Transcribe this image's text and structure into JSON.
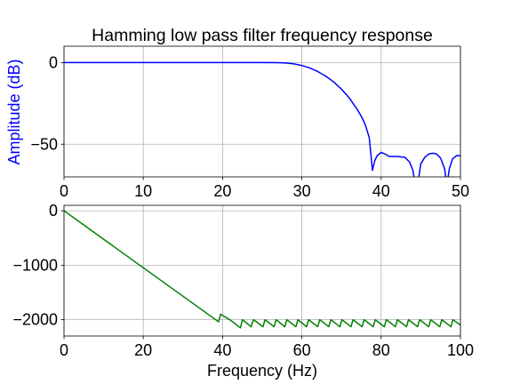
{
  "chart_data": [
    {
      "type": "line",
      "title": "Hamming low pass filter frequency response",
      "xlabel": "",
      "ylabel": "Amplitude (dB)",
      "ylabel_color": "#0000ff",
      "xlim": [
        0,
        50
      ],
      "ylim": [
        -70,
        10
      ],
      "xticks": [
        0,
        10,
        20,
        30,
        40,
        50
      ],
      "yticks": [
        0,
        -50
      ],
      "grid": true,
      "series": [
        {
          "color": "#0000ff",
          "x": [
            0,
            5,
            10,
            15,
            20,
            25,
            27,
            28,
            29,
            30,
            31,
            32,
            33,
            34,
            35,
            36,
            37,
            37.5,
            38,
            38.5,
            38.9,
            39.2,
            39.5,
            40,
            40.5,
            41,
            42,
            43,
            43.6,
            44,
            44.3,
            44.6,
            45,
            45.5,
            46,
            46.5,
            47,
            47.5,
            48,
            48.3,
            48.6,
            49,
            49.5,
            50
          ],
          "y": [
            0,
            0,
            0,
            0,
            0,
            0,
            -0.1,
            -0.3,
            -0.8,
            -1.8,
            -3.3,
            -5.5,
            -8.3,
            -11.8,
            -16.3,
            -21.8,
            -28.8,
            -33,
            -38,
            -46,
            -66,
            -60,
            -57,
            -55,
            -56,
            -57.5,
            -57.5,
            -58,
            -61,
            -66,
            -75,
            -75,
            -62,
            -58,
            -56,
            -55.5,
            -56,
            -58.5,
            -65,
            -75,
            -65,
            -59,
            -57,
            -57
          ]
        }
      ]
    },
    {
      "type": "line",
      "title": "",
      "xlabel": "Frequency (Hz)",
      "ylabel": "",
      "xlim": [
        0,
        100
      ],
      "ylim": [
        -2300,
        100
      ],
      "xticks": [
        0,
        20,
        40,
        60,
        80,
        100
      ],
      "yticks": [
        0,
        -1000,
        -2000
      ],
      "grid": true,
      "series": [
        {
          "color": "#008000",
          "x": [
            0,
            39,
            39.5,
            42,
            44.5,
            45,
            47.2,
            47.8,
            50.2,
            50.7,
            53,
            53.5,
            55.7,
            56.2,
            58.5,
            59,
            61.2,
            61.7,
            64,
            64.5,
            66.8,
            67.3,
            69.6,
            70.1,
            72.4,
            72.9,
            75.2,
            75.7,
            78,
            78.5,
            80.8,
            81.3,
            83.6,
            84.1,
            86.4,
            86.9,
            89.2,
            89.7,
            92,
            92.5,
            94.8,
            95.3,
            97.6,
            98.1,
            100
          ],
          "y": [
            0,
            -2040,
            -1900,
            -2010,
            -2150,
            -2000,
            -2130,
            -2000,
            -2130,
            -2000,
            -2130,
            -2000,
            -2130,
            -2000,
            -2130,
            -2000,
            -2130,
            -2000,
            -2130,
            -2000,
            -2130,
            -2000,
            -2130,
            -2000,
            -2130,
            -2000,
            -2130,
            -2000,
            -2130,
            -2000,
            -2130,
            -2000,
            -2130,
            -2000,
            -2130,
            -2000,
            -2130,
            -2000,
            -2130,
            -2000,
            -2130,
            -2000,
            -2130,
            -2000,
            -2100
          ]
        }
      ]
    }
  ]
}
